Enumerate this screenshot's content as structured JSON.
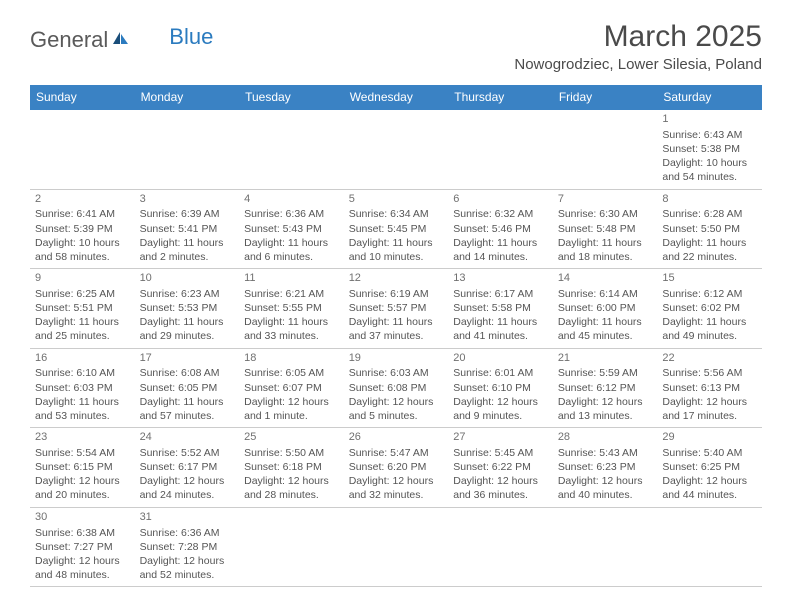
{
  "brand": {
    "part1": "General",
    "part2": "Blue"
  },
  "title": "March 2025",
  "location": "Nowogrodziec, Lower Silesia, Poland",
  "colors": {
    "header_bg": "#3a82c4",
    "header_text": "#ffffff",
    "row_border": "#3a82c4",
    "cell_border": "#cccccc",
    "text": "#555555",
    "brand_gray": "#5a5a5a",
    "brand_blue": "#2b7bbf"
  },
  "day_headers": [
    "Sunday",
    "Monday",
    "Tuesday",
    "Wednesday",
    "Thursday",
    "Friday",
    "Saturday"
  ],
  "weeks": [
    [
      null,
      null,
      null,
      null,
      null,
      null,
      {
        "n": "1",
        "sr": "Sunrise: 6:43 AM",
        "ss": "Sunset: 5:38 PM",
        "dl": "Daylight: 10 hours and 54 minutes."
      }
    ],
    [
      {
        "n": "2",
        "sr": "Sunrise: 6:41 AM",
        "ss": "Sunset: 5:39 PM",
        "dl": "Daylight: 10 hours and 58 minutes."
      },
      {
        "n": "3",
        "sr": "Sunrise: 6:39 AM",
        "ss": "Sunset: 5:41 PM",
        "dl": "Daylight: 11 hours and 2 minutes."
      },
      {
        "n": "4",
        "sr": "Sunrise: 6:36 AM",
        "ss": "Sunset: 5:43 PM",
        "dl": "Daylight: 11 hours and 6 minutes."
      },
      {
        "n": "5",
        "sr": "Sunrise: 6:34 AM",
        "ss": "Sunset: 5:45 PM",
        "dl": "Daylight: 11 hours and 10 minutes."
      },
      {
        "n": "6",
        "sr": "Sunrise: 6:32 AM",
        "ss": "Sunset: 5:46 PM",
        "dl": "Daylight: 11 hours and 14 minutes."
      },
      {
        "n": "7",
        "sr": "Sunrise: 6:30 AM",
        "ss": "Sunset: 5:48 PM",
        "dl": "Daylight: 11 hours and 18 minutes."
      },
      {
        "n": "8",
        "sr": "Sunrise: 6:28 AM",
        "ss": "Sunset: 5:50 PM",
        "dl": "Daylight: 11 hours and 22 minutes."
      }
    ],
    [
      {
        "n": "9",
        "sr": "Sunrise: 6:25 AM",
        "ss": "Sunset: 5:51 PM",
        "dl": "Daylight: 11 hours and 25 minutes."
      },
      {
        "n": "10",
        "sr": "Sunrise: 6:23 AM",
        "ss": "Sunset: 5:53 PM",
        "dl": "Daylight: 11 hours and 29 minutes."
      },
      {
        "n": "11",
        "sr": "Sunrise: 6:21 AM",
        "ss": "Sunset: 5:55 PM",
        "dl": "Daylight: 11 hours and 33 minutes."
      },
      {
        "n": "12",
        "sr": "Sunrise: 6:19 AM",
        "ss": "Sunset: 5:57 PM",
        "dl": "Daylight: 11 hours and 37 minutes."
      },
      {
        "n": "13",
        "sr": "Sunrise: 6:17 AM",
        "ss": "Sunset: 5:58 PM",
        "dl": "Daylight: 11 hours and 41 minutes."
      },
      {
        "n": "14",
        "sr": "Sunrise: 6:14 AM",
        "ss": "Sunset: 6:00 PM",
        "dl": "Daylight: 11 hours and 45 minutes."
      },
      {
        "n": "15",
        "sr": "Sunrise: 6:12 AM",
        "ss": "Sunset: 6:02 PM",
        "dl": "Daylight: 11 hours and 49 minutes."
      }
    ],
    [
      {
        "n": "16",
        "sr": "Sunrise: 6:10 AM",
        "ss": "Sunset: 6:03 PM",
        "dl": "Daylight: 11 hours and 53 minutes."
      },
      {
        "n": "17",
        "sr": "Sunrise: 6:08 AM",
        "ss": "Sunset: 6:05 PM",
        "dl": "Daylight: 11 hours and 57 minutes."
      },
      {
        "n": "18",
        "sr": "Sunrise: 6:05 AM",
        "ss": "Sunset: 6:07 PM",
        "dl": "Daylight: 12 hours and 1 minute."
      },
      {
        "n": "19",
        "sr": "Sunrise: 6:03 AM",
        "ss": "Sunset: 6:08 PM",
        "dl": "Daylight: 12 hours and 5 minutes."
      },
      {
        "n": "20",
        "sr": "Sunrise: 6:01 AM",
        "ss": "Sunset: 6:10 PM",
        "dl": "Daylight: 12 hours and 9 minutes."
      },
      {
        "n": "21",
        "sr": "Sunrise: 5:59 AM",
        "ss": "Sunset: 6:12 PM",
        "dl": "Daylight: 12 hours and 13 minutes."
      },
      {
        "n": "22",
        "sr": "Sunrise: 5:56 AM",
        "ss": "Sunset: 6:13 PM",
        "dl": "Daylight: 12 hours and 17 minutes."
      }
    ],
    [
      {
        "n": "23",
        "sr": "Sunrise: 5:54 AM",
        "ss": "Sunset: 6:15 PM",
        "dl": "Daylight: 12 hours and 20 minutes."
      },
      {
        "n": "24",
        "sr": "Sunrise: 5:52 AM",
        "ss": "Sunset: 6:17 PM",
        "dl": "Daylight: 12 hours and 24 minutes."
      },
      {
        "n": "25",
        "sr": "Sunrise: 5:50 AM",
        "ss": "Sunset: 6:18 PM",
        "dl": "Daylight: 12 hours and 28 minutes."
      },
      {
        "n": "26",
        "sr": "Sunrise: 5:47 AM",
        "ss": "Sunset: 6:20 PM",
        "dl": "Daylight: 12 hours and 32 minutes."
      },
      {
        "n": "27",
        "sr": "Sunrise: 5:45 AM",
        "ss": "Sunset: 6:22 PM",
        "dl": "Daylight: 12 hours and 36 minutes."
      },
      {
        "n": "28",
        "sr": "Sunrise: 5:43 AM",
        "ss": "Sunset: 6:23 PM",
        "dl": "Daylight: 12 hours and 40 minutes."
      },
      {
        "n": "29",
        "sr": "Sunrise: 5:40 AM",
        "ss": "Sunset: 6:25 PM",
        "dl": "Daylight: 12 hours and 44 minutes."
      }
    ],
    [
      {
        "n": "30",
        "sr": "Sunrise: 6:38 AM",
        "ss": "Sunset: 7:27 PM",
        "dl": "Daylight: 12 hours and 48 minutes."
      },
      {
        "n": "31",
        "sr": "Sunrise: 6:36 AM",
        "ss": "Sunset: 7:28 PM",
        "dl": "Daylight: 12 hours and 52 minutes."
      },
      null,
      null,
      null,
      null,
      null
    ]
  ]
}
